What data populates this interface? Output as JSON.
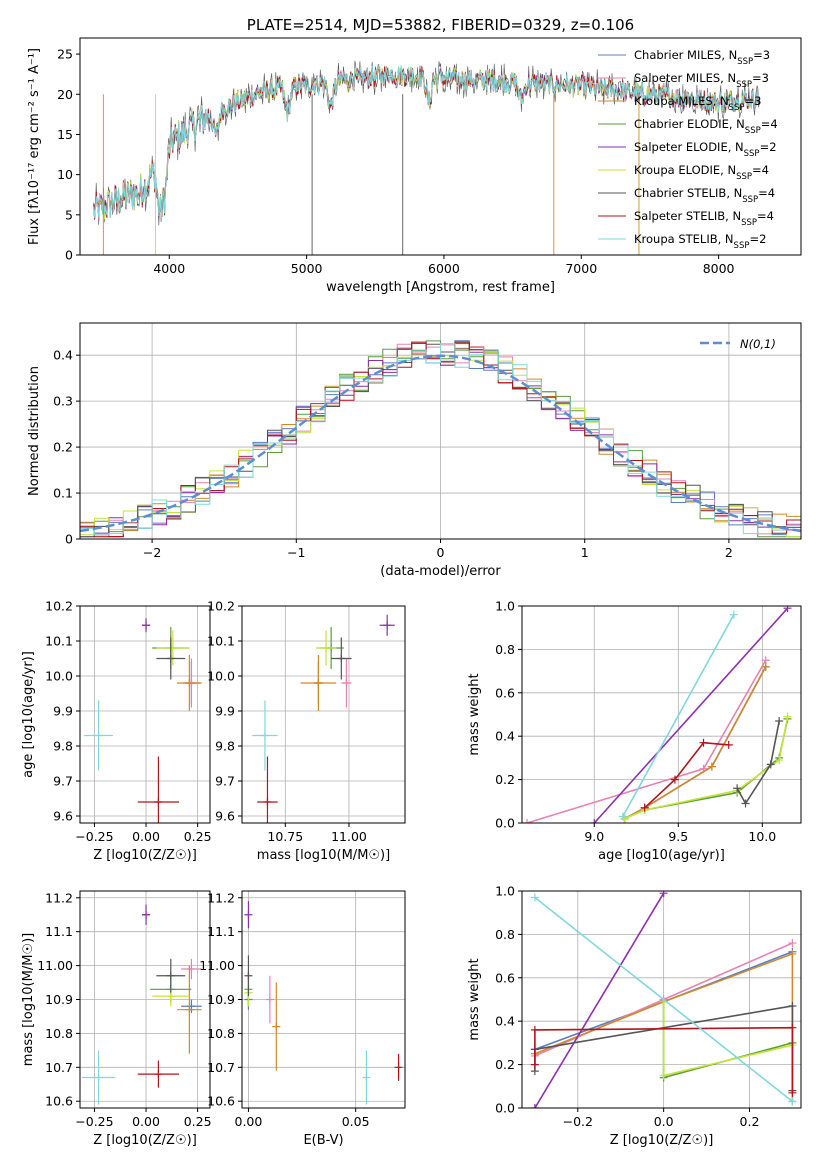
{
  "colors": {
    "Chabrier MILES": "#5b7dc8",
    "Salpeter MILES": "#e882b4",
    "Kroupa MILES": "#d2892a",
    "Chabrier ELODIE": "#5a9e3c",
    "Salpeter ELODIE": "#8e2fae",
    "Kroupa ELODIE": "#c4e43a",
    "Chabrier STELIB": "#555555",
    "Salpeter STELIB": "#b2151b",
    "Kroupa STELIB": "#7fd8de",
    "normal": "#5b8ed6"
  },
  "chart_data": [
    {
      "id": "spectrum",
      "type": "line",
      "title": "PLATE=2514, MJD=53882, FIBERID=0329, z=0.106",
      "xlabel": "wavelength [Angstrom, rest frame]",
      "ylabel": "Flux [fλ10⁻¹⁷ erg cm⁻² s⁻¹ A⁻¹]",
      "xlim": [
        3350,
        8600
      ],
      "ylim": [
        0,
        27
      ],
      "xticks": [
        4000,
        5000,
        6000,
        7000,
        8000
      ],
      "yticks": [
        0,
        5,
        10,
        15,
        20,
        25
      ],
      "grid": false,
      "legend_position": "right",
      "legend": [
        "Chabrier MILES, NSSP=3",
        "Salpeter MILES, NSSP=3",
        "Kroupa MILES, NSSP=3",
        "Chabrier ELODIE, NSSP=4",
        "Salpeter ELODIE, NSSP=2",
        "Kroupa ELODIE, NSSP=4",
        "Chabrier STELIB, NSSP=4",
        "Salpeter STELIB, NSSP=4",
        "Kroupa STELIB, NSSP=2"
      ],
      "continuum_trend": {
        "x": [
          3450,
          3800,
          4000,
          4300,
          4700,
          5200,
          5600,
          6000,
          6500,
          7000,
          7500,
          8000,
          8300
        ],
        "y": [
          5.5,
          8,
          14,
          17.5,
          20.5,
          21.5,
          22.5,
          22,
          21.5,
          21,
          20,
          19,
          19.5
        ]
      }
    },
    {
      "id": "residuals",
      "type": "line",
      "xlabel": "(data-model)/error",
      "ylabel": "Normed distribution",
      "xlim": [
        -2.5,
        2.5
      ],
      "ylim": [
        0,
        0.47
      ],
      "xticks": [
        -2,
        -1,
        0,
        1,
        2
      ],
      "yticks": [
        0.0,
        0.1,
        0.2,
        0.3,
        0.4
      ],
      "grid": true,
      "legend_position": "top-right",
      "legend": [
        "N(0,1)"
      ],
      "normal_curve": {
        "mean": 0,
        "sd": 1
      }
    },
    {
      "id": "age_vs_Z",
      "type": "scatter",
      "xlabel": "Z [log10(Z/Z☉)]",
      "ylabel": "age  [log10(age/yr)]",
      "xlim": [
        -0.32,
        0.31
      ],
      "ylim": [
        9.58,
        10.2
      ],
      "xticks": [
        -0.25,
        0.0,
        0.25
      ],
      "yticks": [
        9.6,
        9.7,
        9.8,
        9.9,
        10.0,
        10.1,
        10.2
      ],
      "grid": true,
      "points": [
        {
          "model": "Chabrier MILES",
          "x": 0.22,
          "y": 9.98,
          "xerr": 0.04,
          "yerr": 0.06
        },
        {
          "model": "Salpeter MILES",
          "x": 0.22,
          "y": 9.98,
          "xerr": 0.04,
          "yerr": 0.07
        },
        {
          "model": "Kroupa MILES",
          "x": 0.21,
          "y": 9.98,
          "xerr": 0.06,
          "yerr": 0.08
        },
        {
          "model": "Chabrier ELODIE",
          "x": 0.12,
          "y": 10.08,
          "xerr": 0.09,
          "yerr": 0.06
        },
        {
          "model": "Salpeter ELODIE",
          "x": 0.0,
          "y": 10.145,
          "xerr": 0.02,
          "yerr": 0.02
        },
        {
          "model": "Kroupa ELODIE",
          "x": 0.13,
          "y": 10.08,
          "xerr": 0.08,
          "yerr": 0.05
        },
        {
          "model": "Chabrier STELIB",
          "x": 0.12,
          "y": 10.05,
          "xerr": 0.07,
          "yerr": 0.06
        },
        {
          "model": "Salpeter STELIB",
          "x": 0.06,
          "y": 9.64,
          "xerr": 0.1,
          "yerr": 0.13
        },
        {
          "model": "Kroupa STELIB",
          "x": -0.23,
          "y": 9.83,
          "xerr": 0.07,
          "yerr": 0.1
        }
      ]
    },
    {
      "id": "age_vs_mass",
      "type": "scatter",
      "xlabel": "mass [log10(M/M☉)]",
      "ylabel": "",
      "xlim": [
        10.58,
        11.22
      ],
      "ylim": [
        9.58,
        10.2
      ],
      "xticks": [
        10.75,
        11.0
      ],
      "yticks": [
        9.6,
        9.7,
        9.8,
        9.9,
        10.0,
        10.1,
        10.2
      ],
      "grid": true,
      "points": [
        {
          "model": "Chabrier MILES",
          "x": 10.88,
          "y": 9.98,
          "xerr": 0.02,
          "yerr": 0.06
        },
        {
          "model": "Salpeter MILES",
          "x": 10.99,
          "y": 9.98,
          "xerr": 0.02,
          "yerr": 0.07
        },
        {
          "model": "Kroupa MILES",
          "x": 10.88,
          "y": 9.98,
          "xerr": 0.07,
          "yerr": 0.08
        },
        {
          "model": "Chabrier ELODIE",
          "x": 10.93,
          "y": 10.08,
          "xerr": 0.05,
          "yerr": 0.06
        },
        {
          "model": "Salpeter ELODIE",
          "x": 11.15,
          "y": 10.145,
          "xerr": 0.03,
          "yerr": 0.03
        },
        {
          "model": "Kroupa ELODIE",
          "x": 10.91,
          "y": 10.08,
          "xerr": 0.04,
          "yerr": 0.05
        },
        {
          "model": "Chabrier STELIB",
          "x": 10.97,
          "y": 10.05,
          "xerr": 0.04,
          "yerr": 0.06
        },
        {
          "model": "Salpeter STELIB",
          "x": 10.68,
          "y": 9.64,
          "xerr": 0.04,
          "yerr": 0.13
        },
        {
          "model": "Kroupa STELIB",
          "x": 10.67,
          "y": 9.83,
          "xerr": 0.05,
          "yerr": 0.1
        }
      ]
    },
    {
      "id": "weight_vs_age",
      "type": "line",
      "xlabel": "age  [log10(age/yr)]",
      "ylabel": "mass weight",
      "xlim": [
        8.57,
        10.23
      ],
      "ylim": [
        0,
        1.0
      ],
      "xticks": [
        9.0,
        9.5,
        10.0
      ],
      "yticks": [
        0.0,
        0.2,
        0.4,
        0.6,
        0.8,
        1.0
      ],
      "grid": true,
      "series": [
        {
          "model": "Chabrier MILES",
          "x": [
            9.18,
            9.3,
            9.7,
            10.02
          ],
          "y": [
            0.02,
            0.07,
            0.26,
            0.72
          ]
        },
        {
          "model": "Salpeter MILES",
          "x": [
            8.6,
            9.65,
            10.02
          ],
          "y": [
            0.0,
            0.25,
            0.75
          ]
        },
        {
          "model": "Kroupa MILES",
          "x": [
            9.18,
            9.3,
            9.7,
            10.02
          ],
          "y": [
            0.02,
            0.07,
            0.26,
            0.72
          ]
        },
        {
          "model": "Chabrier ELODIE",
          "x": [
            9.18,
            9.3,
            9.85,
            10.1,
            10.15
          ],
          "y": [
            0.02,
            0.06,
            0.14,
            0.3,
            0.48
          ]
        },
        {
          "model": "Salpeter ELODIE",
          "x": [
            9.0,
            10.15
          ],
          "y": [
            0.0,
            0.99
          ]
        },
        {
          "model": "Kroupa ELODIE",
          "x": [
            9.18,
            9.3,
            9.85,
            10.1,
            10.15
          ],
          "y": [
            0.02,
            0.06,
            0.15,
            0.29,
            0.49
          ]
        },
        {
          "model": "Chabrier STELIB",
          "x": [
            9.85,
            9.9,
            10.05,
            10.1
          ],
          "y": [
            0.16,
            0.09,
            0.27,
            0.47
          ]
        },
        {
          "model": "Salpeter STELIB",
          "x": [
            9.3,
            9.48,
            9.65,
            9.8
          ],
          "y": [
            0.07,
            0.2,
            0.37,
            0.36
          ]
        },
        {
          "model": "Kroupa STELIB",
          "x": [
            9.17,
            9.83
          ],
          "y": [
            0.03,
            0.96
          ]
        }
      ]
    },
    {
      "id": "mass_vs_Z",
      "type": "scatter",
      "xlabel": "Z [log10(Z/Z☉)]",
      "ylabel": "mass [log10(M/M☉)]",
      "xlim": [
        -0.32,
        0.31
      ],
      "ylim": [
        10.58,
        11.22
      ],
      "xticks": [
        -0.25,
        0.0,
        0.25
      ],
      "yticks": [
        10.6,
        10.7,
        10.8,
        10.9,
        11.0,
        11.1,
        11.2
      ],
      "grid": true,
      "points": [
        {
          "model": "Chabrier MILES",
          "x": 0.22,
          "y": 10.88,
          "xerr": 0.05,
          "yerr": 0.02
        },
        {
          "model": "Salpeter MILES",
          "x": 0.22,
          "y": 10.99,
          "xerr": 0.05,
          "yerr": 0.03
        },
        {
          "model": "Kroupa MILES",
          "x": 0.21,
          "y": 10.87,
          "xerr": 0.06,
          "yerr": 0.13
        },
        {
          "model": "Chabrier ELODIE",
          "x": 0.12,
          "y": 10.93,
          "xerr": 0.1,
          "yerr": 0.04
        },
        {
          "model": "Salpeter ELODIE",
          "x": 0.0,
          "y": 11.15,
          "xerr": 0.02,
          "yerr": 0.03
        },
        {
          "model": "Kroupa ELODIE",
          "x": 0.12,
          "y": 10.91,
          "xerr": 0.09,
          "yerr": 0.03
        },
        {
          "model": "Chabrier STELIB",
          "x": 0.12,
          "y": 10.97,
          "xerr": 0.07,
          "yerr": 0.05
        },
        {
          "model": "Salpeter STELIB",
          "x": 0.06,
          "y": 10.68,
          "xerr": 0.1,
          "yerr": 0.04
        },
        {
          "model": "Kroupa STELIB",
          "x": -0.23,
          "y": 10.67,
          "xerr": 0.08,
          "yerr": 0.08
        }
      ]
    },
    {
      "id": "mass_vs_EBV",
      "type": "scatter",
      "xlabel": "E(B-V)",
      "ylabel": "",
      "xlim": [
        -0.003,
        0.073
      ],
      "ylim": [
        10.58,
        11.22
      ],
      "xticks": [
        0.0,
        0.05
      ],
      "yticks": [
        10.6,
        10.7,
        10.8,
        10.9,
        11.0,
        11.1,
        11.2
      ],
      "grid": true,
      "points": [
        {
          "model": "Chabrier MILES",
          "x": 0.0,
          "y": 10.9,
          "xerr": 0,
          "yerr": 0.03
        },
        {
          "model": "Salpeter MILES",
          "x": 0.01,
          "y": 10.9,
          "xerr": 0,
          "yerr": 0.07
        },
        {
          "model": "Kroupa MILES",
          "x": 0.013,
          "y": 10.82,
          "xerr": 0,
          "yerr": 0.13
        },
        {
          "model": "Chabrier ELODIE",
          "x": 0.0,
          "y": 10.93,
          "xerr": 0,
          "yerr": 0.05
        },
        {
          "model": "Salpeter ELODIE",
          "x": 0.0,
          "y": 11.15,
          "xerr": 0,
          "yerr": 0.04
        },
        {
          "model": "Kroupa ELODIE",
          "x": 0.0,
          "y": 10.92,
          "xerr": 0,
          "yerr": 0.04
        },
        {
          "model": "Chabrier STELIB",
          "x": 0.0,
          "y": 10.97,
          "xerr": 0,
          "yerr": 0.06
        },
        {
          "model": "Salpeter STELIB",
          "x": 0.07,
          "y": 10.7,
          "xerr": 0,
          "yerr": 0.04
        },
        {
          "model": "Kroupa STELIB",
          "x": 0.055,
          "y": 10.67,
          "xerr": 0,
          "yerr": 0.08
        }
      ]
    },
    {
      "id": "weight_vs_Z",
      "type": "line",
      "xlabel": "Z [log10(Z/Z☉)]",
      "ylabel": "mass weight",
      "xlim": [
        -0.33,
        0.32
      ],
      "ylim": [
        0,
        1.0
      ],
      "xticks": [
        -0.2,
        0.0,
        0.2
      ],
      "yticks": [
        0.0,
        0.2,
        0.4,
        0.6,
        0.8,
        1.0
      ],
      "grid": true,
      "series": [
        {
          "model": "Chabrier MILES",
          "x": [
            -0.3,
            0.0,
            0.3
          ],
          "y": [
            0.27,
            0.49,
            0.72
          ]
        },
        {
          "model": "Salpeter MILES",
          "x": [
            -0.3,
            0.0,
            0.3
          ],
          "y": [
            0.24,
            0.5,
            0.76
          ]
        },
        {
          "model": "Kroupa MILES",
          "x": [
            -0.3,
            0.0,
            0.3,
            0.3
          ],
          "y": [
            0.25,
            0.49,
            0.71,
            0.03
          ]
        },
        {
          "model": "Chabrier ELODIE",
          "x": [
            0.0,
            0.0,
            0.3
          ],
          "y": [
            0.49,
            0.14,
            0.3
          ]
        },
        {
          "model": "Salpeter ELODIE",
          "x": [
            -0.3,
            0.0
          ],
          "y": [
            0.0,
            0.99
          ]
        },
        {
          "model": "Kroupa ELODIE",
          "x": [
            0.0,
            0.0,
            0.3
          ],
          "y": [
            0.49,
            0.15,
            0.29
          ]
        },
        {
          "model": "Chabrier STELIB",
          "x": [
            -0.3,
            -0.3,
            0.3,
            0.3
          ],
          "y": [
            0.17,
            0.27,
            0.47,
            0.08
          ]
        },
        {
          "model": "Salpeter STELIB",
          "x": [
            -0.3,
            -0.3,
            0.3,
            0.3
          ],
          "y": [
            0.2,
            0.36,
            0.37,
            0.07
          ]
        },
        {
          "model": "Kroupa STELIB",
          "x": [
            -0.3,
            0.3
          ],
          "y": [
            0.97,
            0.03
          ]
        }
      ]
    }
  ]
}
